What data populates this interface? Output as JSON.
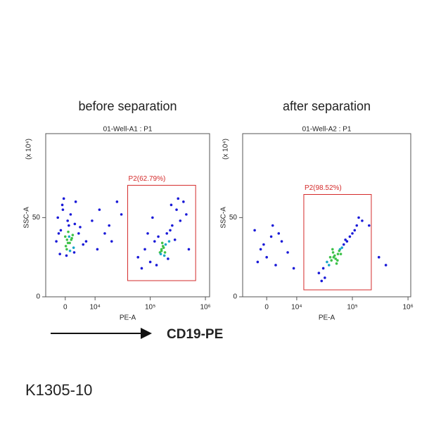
{
  "chart_data": [
    {
      "type": "scatter",
      "title": "before separation",
      "subtitle": "01-Well-A1 : P1",
      "xlabel": "PE-A",
      "ylabel": "SSC-A",
      "y_unit": "(x 10⁴)",
      "xlim": [
        -6560,
        1190000
      ],
      "ylim": [
        0,
        103
      ],
      "xticks": [
        0,
        {
          "value": 10000,
          "label": "10⁴"
        },
        {
          "value": 100000,
          "label": "10⁵"
        },
        {
          "value": 1000000,
          "label": "10⁶"
        }
      ],
      "yticks": [
        0,
        50
      ],
      "color": "#1a1ad8",
      "x": [
        -3000,
        -1500,
        0,
        500,
        1200,
        2000,
        3000,
        4500,
        6000,
        -2500,
        -800,
        800,
        1500,
        2500,
        3500,
        -1800,
        200,
        1000,
        2200,
        5000,
        -1000,
        600,
        1800,
        2800,
        -2200,
        400,
        1300,
        3200,
        7000,
        -500,
        900,
        1600,
        9000,
        12000,
        15000,
        20000,
        25000,
        11000,
        18000,
        30000,
        60000,
        80000,
        100000,
        120000,
        150000,
        160000,
        170000,
        180000,
        200000,
        220000,
        250000,
        300000,
        350000,
        400000,
        130000,
        140000,
        190000,
        210000,
        90000,
        110000,
        160000,
        175000,
        230000,
        280000,
        450000,
        500000,
        70000,
        155000,
        165000,
        185000,
        240000,
        320000
      ],
      "y": [
        35,
        42,
        38,
        30,
        45,
        36,
        28,
        40,
        33,
        50,
        55,
        48,
        34,
        39,
        60,
        27,
        32,
        41,
        37,
        44,
        58,
        36,
        52,
        31,
        40,
        26,
        38,
        46,
        35,
        62,
        34,
        29,
        48,
        55,
        40,
        35,
        60,
        30,
        45,
        52,
        25,
        30,
        22,
        35,
        28,
        30,
        32,
        26,
        40,
        35,
        45,
        55,
        48,
        60,
        20,
        38,
        33,
        24,
        40,
        50,
        29,
        31,
        42,
        36,
        52,
        30,
        18,
        27,
        34,
        28,
        58,
        62
      ],
      "gate": {
        "label": "P2(62.79%)",
        "percent": 62.79,
        "x": [
          39000,
          665000
        ],
        "y": [
          10.2,
          70.4
        ],
        "color": "#d42a2a"
      }
    },
    {
      "type": "scatter",
      "title": "after separation",
      "subtitle": "01-Well-A2 : P1",
      "xlabel": "PE-A",
      "ylabel": "SSC-A",
      "y_unit": "(x 10⁴)",
      "xlim": [
        -8000,
        1120000
      ],
      "ylim": [
        0,
        103
      ],
      "xticks": [
        0,
        {
          "value": 100000,
          "label": "10⁵"
        },
        {
          "value": 1000000,
          "label": "10⁶"
        },
        {
          "value": 10000,
          "label": "10⁴"
        }
      ],
      "yticks": [
        0,
        50
      ],
      "color": "#1a1ad8",
      "x": [
        -4000,
        -2000,
        0,
        1500,
        3000,
        5000,
        -3000,
        2000,
        7000,
        9000,
        -1000,
        4000,
        25000,
        30000,
        35000,
        40000,
        45000,
        50000,
        55000,
        60000,
        70000,
        80000,
        100000,
        120000,
        150000,
        38000,
        42000,
        48000,
        52000,
        58000,
        65000,
        90000,
        110000,
        32000,
        46000,
        54000,
        62000,
        75000,
        130000,
        200000,
        28000,
        44000,
        300000,
        400000
      ],
      "y": [
        42,
        30,
        25,
        38,
        20,
        35,
        22,
        45,
        28,
        18,
        33,
        40,
        15,
        18,
        22,
        25,
        28,
        24,
        27,
        30,
        33,
        35,
        40,
        45,
        48,
        20,
        23,
        26,
        21,
        29,
        31,
        38,
        42,
        12,
        25,
        23,
        27,
        36,
        50,
        45,
        10,
        30,
        25,
        20
      ],
      "gate": {
        "label": "P2(98.52%)",
        "percent": 98.52,
        "x": [
          13400,
          219000
        ],
        "y": [
          4.4,
          64.6
        ],
        "color": "#d42a2a"
      }
    }
  ],
  "annotation": "CD19-PE",
  "footer": "K1305-10"
}
